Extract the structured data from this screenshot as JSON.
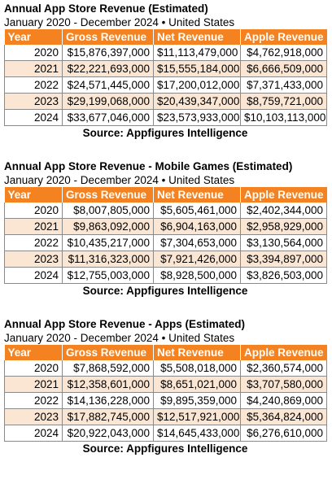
{
  "columns": [
    "Year",
    "Gross Revenue",
    "Net Revenue",
    "Apple Revenue"
  ],
  "sections": [
    {
      "title": "Annual App Store Revenue (Estimated)",
      "subtitle": "January 2020 - December 2024 • United States",
      "rows": [
        [
          "2020",
          "$15,876,397,000",
          "$11,113,479,000",
          "$4,762,918,000"
        ],
        [
          "2021",
          "$22,221,693,000",
          "$15,555,184,000",
          "$6,666,509,000"
        ],
        [
          "2022",
          "$24,571,445,000",
          "$17,200,012,000",
          "$7,371,433,000"
        ],
        [
          "2023",
          "$29,199,068,000",
          "$20,439,347,000",
          "$8,759,721,000"
        ],
        [
          "2024",
          "$33,677,046,000",
          "$23,573,933,000",
          "$10,103,113,000"
        ]
      ],
      "source": "Source: Appfigures Intelligence"
    },
    {
      "title": "Annual App Store Revenue - Mobile Games (Estimated)",
      "subtitle": "January 2020 - December 2024 • United States",
      "rows": [
        [
          "2020",
          "$8,007,805,000",
          "$5,605,461,000",
          "$2,402,344,000"
        ],
        [
          "2021",
          "$9,863,092,000",
          "$6,904,163,000",
          "$2,958,929,000"
        ],
        [
          "2022",
          "$10,435,217,000",
          "$7,304,653,000",
          "$3,130,564,000"
        ],
        [
          "2023",
          "$11,316,323,000",
          "$7,921,426,000",
          "$3,394,897,000"
        ],
        [
          "2024",
          "$12,755,003,000",
          "$8,928,500,000",
          "$3,826,503,000"
        ]
      ],
      "source": "Source: Appfigures Intelligence"
    },
    {
      "title": "Annual App Store Revenue - Apps (Estimated)",
      "subtitle": "January 2020 - December 2024 • United States",
      "rows": [
        [
          "2020",
          "$7,868,592,000",
          "$5,508,018,000",
          "$2,360,574,000"
        ],
        [
          "2021",
          "$12,358,601,000",
          "$8,651,021,000",
          "$3,707,580,000"
        ],
        [
          "2022",
          "$14,136,228,000",
          "$9,895,359,000",
          "$4,240,869,000"
        ],
        [
          "2023",
          "$17,882,745,000",
          "$12,517,921,000",
          "$5,364,824,000"
        ],
        [
          "2024",
          "$20,922,043,000",
          "$14,645,433,000",
          "$6,276,610,000"
        ]
      ],
      "source": "Source: Appfigures Intelligence"
    }
  ],
  "colors": {
    "header_bg": "#f58220",
    "header_text": "#ffffff",
    "stripe_bg": "#fbe6d3"
  }
}
